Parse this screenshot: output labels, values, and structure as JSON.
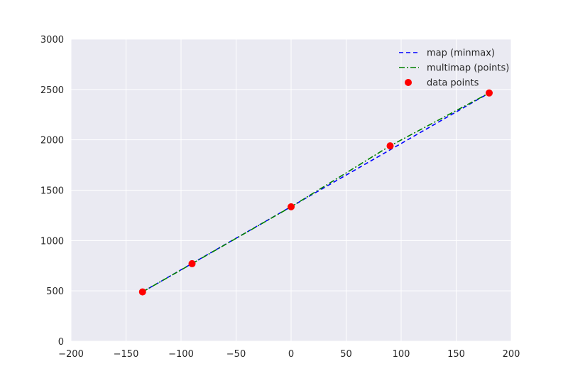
{
  "chart_data": {
    "type": "line",
    "title": "",
    "xlabel": "",
    "ylabel": "",
    "xlim": [
      -200,
      200
    ],
    "ylim": [
      0,
      3000
    ],
    "xticks": [
      -200,
      -150,
      -100,
      -50,
      0,
      50,
      100,
      150,
      200
    ],
    "xtick_labels": [
      "−200",
      "−150",
      "−100",
      "−50",
      "0",
      "50",
      "100",
      "150",
      "200"
    ],
    "yticks": [
      0,
      500,
      1000,
      1500,
      2000,
      2500,
      3000
    ],
    "ytick_labels": [
      "0",
      "500",
      "1000",
      "1500",
      "2000",
      "2500",
      "3000"
    ],
    "grid": true,
    "legend_position": "top-right",
    "background_color": "#eaeaf2",
    "series": [
      {
        "name": "map (minmax)",
        "style": "dashed",
        "color": "#0000ff",
        "x": [
          -135,
          180
        ],
        "y": [
          490,
          2465
        ]
      },
      {
        "name": "multimap (points)",
        "style": "dashdot",
        "color": "#008000",
        "x": [
          -135,
          -90,
          0,
          90,
          180
        ],
        "y": [
          490,
          770,
          1335,
          1940,
          2465
        ]
      },
      {
        "name": "data points",
        "style": "markers",
        "color": "#ff0000",
        "x": [
          -135,
          -90,
          0,
          90,
          180
        ],
        "y": [
          490,
          770,
          1335,
          1940,
          2465
        ]
      }
    ]
  }
}
